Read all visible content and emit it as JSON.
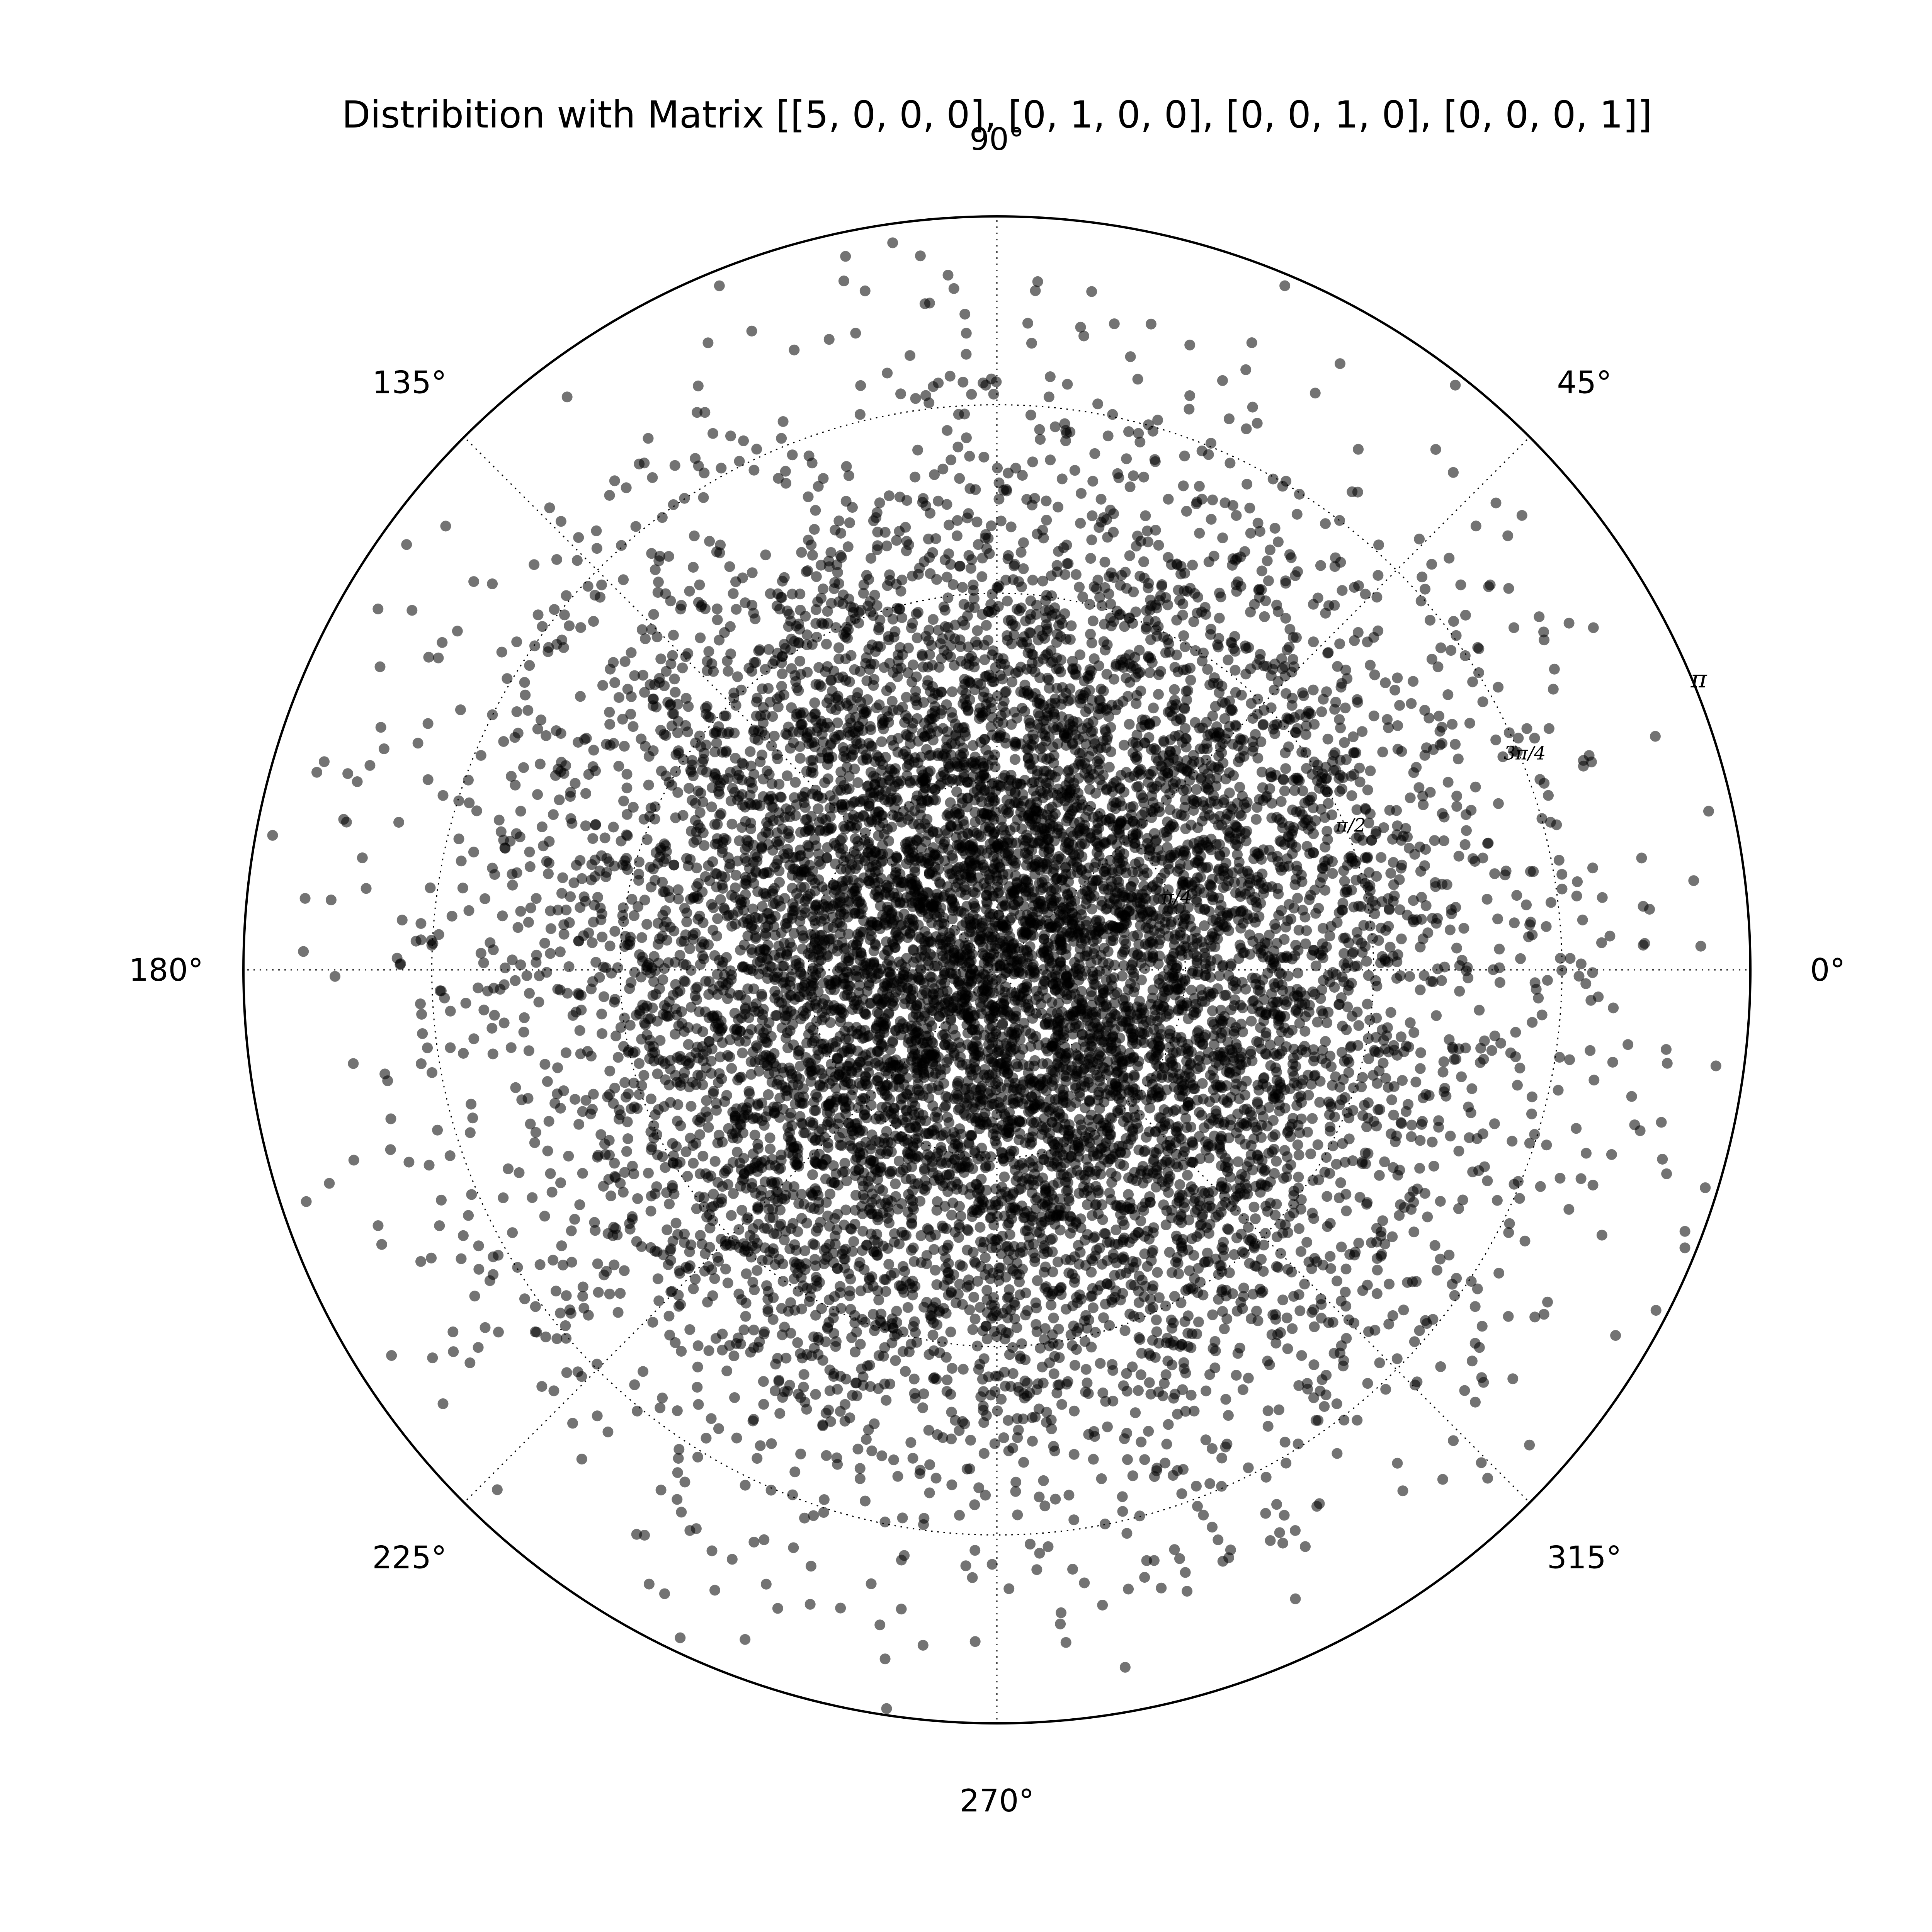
{
  "chart_data": {
    "type": "scatter",
    "projection": "polar",
    "title": "Distribition with Matrix [[5, 0, 0, 0], [0, 1, 0, 0], [0, 0, 1, 0], [0, 0, 0, 1]]",
    "angular_ticks": [
      "0°",
      "45°",
      "90°",
      "135°",
      "180°",
      "225°",
      "270°",
      "315°"
    ],
    "angular_tick_degrees": [
      0,
      45,
      90,
      135,
      180,
      225,
      270,
      315
    ],
    "radial_ticks": [
      {
        "value": 0.785398,
        "label": "π/4"
      },
      {
        "value": 1.570796,
        "label": "π/2"
      },
      {
        "value": 2.356194,
        "label": "3π/4"
      },
      {
        "value": 3.141593,
        "label": "π"
      }
    ],
    "radial_label_angle_deg": 22.5,
    "rlim": [
      0,
      3.141593
    ],
    "grid": true,
    "point_color": "#000000",
    "point_alpha": 0.55,
    "n_points": 10000,
    "distribution": {
      "description": "points dense near the center, thinning toward the outer edge, spanning all angles",
      "radial_sigma": 0.95,
      "max_radius": 3.12
    }
  }
}
